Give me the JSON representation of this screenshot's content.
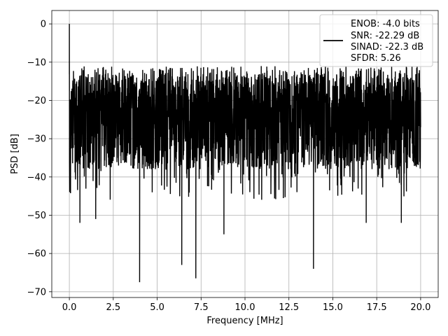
{
  "chart_data": {
    "type": "line",
    "title": "",
    "xlabel": "Frequency [MHz]",
    "ylabel": "PSD [dB]",
    "xlim": [
      -1.0,
      21.0
    ],
    "ylim": [
      -71.5,
      3.5
    ],
    "xticks": [
      0.0,
      2.5,
      5.0,
      7.5,
      10.0,
      12.5,
      15.0,
      17.5,
      20.0
    ],
    "xtick_labels": [
      "0.0",
      "2.5",
      "5.0",
      "7.5",
      "10.0",
      "12.5",
      "15.0",
      "17.5",
      "20.0"
    ],
    "yticks": [
      0,
      -10,
      -20,
      -30,
      -40,
      -50,
      -60,
      -70
    ],
    "ytick_labels": [
      "0",
      "−10",
      "−20",
      "−30",
      "−40",
      "−50",
      "−60",
      "−70"
    ],
    "grid": true,
    "legend_position": "top-right",
    "line_color": "#000000",
    "noise_band": {
      "x_range": [
        0.0,
        20.0
      ],
      "upper_envelope_db": -13,
      "lower_envelope_db": -38
    },
    "peaks": [
      {
        "x": 0.0,
        "y": 0.0
      }
    ],
    "notable_dips": [
      {
        "x": 0.6,
        "y": -52
      },
      {
        "x": 1.5,
        "y": -51
      },
      {
        "x": 4.0,
        "y": -67.5
      },
      {
        "x": 6.4,
        "y": -63
      },
      {
        "x": 7.2,
        "y": -66.5
      },
      {
        "x": 8.8,
        "y": -55
      },
      {
        "x": 13.9,
        "y": -64
      },
      {
        "x": 16.9,
        "y": -52
      },
      {
        "x": 18.9,
        "y": -52
      }
    ],
    "series": [
      {
        "legend_lines": [
          "ENOB: -4.0 bits",
          "SNR: -22.29 dB",
          "SINAD: -22.3 dB",
          "SFDR: 5.26"
        ]
      }
    ]
  }
}
